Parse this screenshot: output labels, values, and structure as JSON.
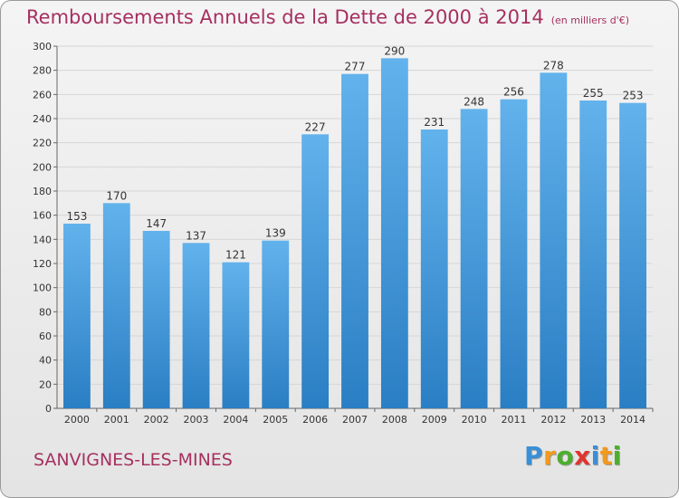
{
  "header": {
    "title": "Remboursements Annuels de la Dette de 2000 à 2014",
    "subtitle": "(en milliers d'€)"
  },
  "footer": {
    "city": "SANVIGNES-LES-MINES",
    "logo_text": "Proxiti",
    "logo_letters": [
      {
        "char": "P",
        "color": "#3a8fd6"
      },
      {
        "char": "r",
        "color": "#f29a1b"
      },
      {
        "char": "o",
        "color": "#4caf2c"
      },
      {
        "char": "x",
        "color": "#e2342e"
      },
      {
        "char": "i",
        "color": "#3a8fd6"
      },
      {
        "char": "t",
        "color": "#f29a1b"
      },
      {
        "char": "i",
        "color": "#4caf2c"
      }
    ]
  },
  "colors": {
    "bar_top": "#62b2ec",
    "bar_bottom": "#2a7ec3",
    "grid": "#d6d6d6",
    "title": "#a6305f"
  },
  "chart_data": {
    "type": "bar",
    "title": "Remboursements Annuels de la Dette de 2000 à 2014",
    "subtitle": "(en milliers d'€)",
    "xlabel": "",
    "ylabel": "",
    "categories": [
      "2000",
      "2001",
      "2002",
      "2003",
      "2004",
      "2005",
      "2006",
      "2007",
      "2008",
      "2009",
      "2010",
      "2011",
      "2012",
      "2013",
      "2014"
    ],
    "values": [
      153,
      170,
      147,
      137,
      121,
      139,
      227,
      277,
      290,
      231,
      248,
      256,
      278,
      255,
      253
    ],
    "ylim": [
      0,
      300
    ],
    "yticks": [
      0,
      20,
      40,
      60,
      80,
      100,
      120,
      140,
      160,
      180,
      200,
      220,
      240,
      260,
      280,
      300
    ],
    "grid": true,
    "legend": "none"
  }
}
